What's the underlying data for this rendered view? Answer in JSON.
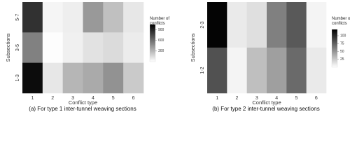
{
  "chart_data": [
    {
      "type": "heatmap",
      "caption": "(a) For type 1 inter-tunnel weaving sections",
      "xlabel": "Conflict type",
      "ylabel": "Subsections",
      "x": [
        "1",
        "2",
        "3",
        "4",
        "5",
        "6"
      ],
      "y": [
        "5-7",
        "3-5",
        "1-3"
      ],
      "values": [
        [
          850,
          40,
          70,
          420,
          260,
          100
        ],
        [
          520,
          10,
          60,
          120,
          150,
          80
        ],
        [
          1000,
          100,
          300,
          350,
          450,
          220
        ]
      ],
      "colorbar": {
        "title": "Number of conflicts",
        "lim": [
          0,
          1050
        ],
        "ticks": [
          900,
          600,
          300
        ]
      },
      "cmap": [
        "#ffffff",
        "#000000"
      ]
    },
    {
      "type": "heatmap",
      "caption": "(b) For type 2 inter-tunnel weaving sections",
      "xlabel": "Conflict type",
      "ylabel": "Subsections",
      "x": [
        "1",
        "2",
        "3",
        "4",
        "5",
        "6"
      ],
      "y": [
        "2-3",
        "1-2"
      ],
      "values": [
        [
          118,
          10,
          15,
          60,
          78,
          5
        ],
        [
          82,
          5,
          30,
          45,
          70,
          10
        ]
      ],
      "colorbar": {
        "title": "Number of conflicts",
        "lim": [
          0,
          120
        ],
        "ticks": [
          100,
          75,
          50,
          25
        ]
      },
      "cmap": [
        "#ffffff",
        "#000000"
      ]
    }
  ]
}
